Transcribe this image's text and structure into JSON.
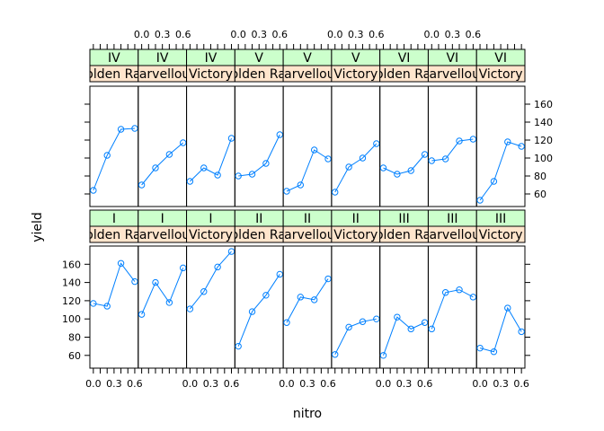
{
  "chart_data": {
    "type": "line",
    "layout": "trellis",
    "xlabel": "nitro",
    "ylabel": "yield",
    "xlim": [
      -0.05,
      0.65
    ],
    "ylim": [
      46,
      180
    ],
    "x_ticks": [
      0.0,
      0.3,
      0.6
    ],
    "x_tick_labels": [
      "0.0",
      "0.3",
      "0.6"
    ],
    "y_ticks": [
      60,
      80,
      100,
      120,
      140,
      160
    ],
    "y_tick_labels": [
      "60",
      "80",
      "100",
      "120",
      "140",
      "160"
    ],
    "x": [
      0.0,
      0.2,
      0.4,
      0.6
    ],
    "marker": "open-circle",
    "line_color": "#0080ff",
    "strip_colors": {
      "block": "#ccffcc",
      "variety": "#ffe5cc"
    },
    "grid": false,
    "panels": [
      {
        "block": "I",
        "variety": "Golden Rain",
        "values": [
          117,
          114,
          161,
          141
        ]
      },
      {
        "block": "I",
        "variety": "Marvellous",
        "values": [
          105,
          140,
          118,
          156
        ]
      },
      {
        "block": "I",
        "variety": "Victory",
        "values": [
          111,
          130,
          157,
          174
        ]
      },
      {
        "block": "II",
        "variety": "Golden Rain",
        "values": [
          70,
          108,
          126,
          149
        ]
      },
      {
        "block": "II",
        "variety": "Marvellous",
        "values": [
          96,
          124,
          121,
          144
        ]
      },
      {
        "block": "II",
        "variety": "Victory",
        "values": [
          61,
          91,
          97,
          100
        ]
      },
      {
        "block": "III",
        "variety": "Golden Rain",
        "values": [
          60,
          102,
          89,
          96
        ]
      },
      {
        "block": "III",
        "variety": "Marvellous",
        "values": [
          89,
          129,
          132,
          124
        ]
      },
      {
        "block": "III",
        "variety": "Victory",
        "values": [
          68,
          64,
          112,
          86
        ]
      },
      {
        "block": "IV",
        "variety": "Golden Rain",
        "values": [
          64,
          103,
          132,
          133
        ]
      },
      {
        "block": "IV",
        "variety": "Marvellous",
        "values": [
          70,
          89,
          104,
          117
        ]
      },
      {
        "block": "IV",
        "variety": "Victory",
        "values": [
          74,
          89,
          81,
          122
        ]
      },
      {
        "block": "V",
        "variety": "Golden Rain",
        "values": [
          80,
          82,
          94,
          126
        ]
      },
      {
        "block": "V",
        "variety": "Marvellous",
        "values": [
          63,
          70,
          109,
          99
        ]
      },
      {
        "block": "V",
        "variety": "Victory",
        "values": [
          62,
          90,
          100,
          116
        ]
      },
      {
        "block": "VI",
        "variety": "Golden Rain",
        "values": [
          89,
          82,
          86,
          104
        ]
      },
      {
        "block": "VI",
        "variety": "Marvellous",
        "values": [
          97,
          99,
          119,
          121
        ]
      },
      {
        "block": "VI",
        "variety": "Victory",
        "values": [
          53,
          74,
          118,
          113
        ]
      }
    ]
  }
}
